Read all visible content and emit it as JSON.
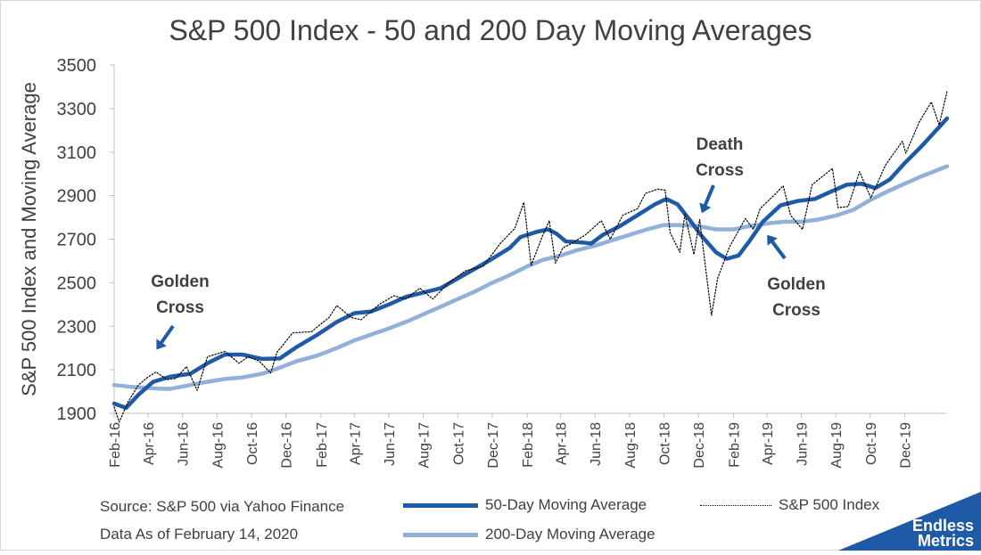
{
  "chart_data": {
    "type": "line",
    "title": "S&P 500 Index - 50 and 200 Day Moving Averages",
    "ylabel": "S&P 500 Index and Moving Average",
    "xlabel": "",
    "ylim": [
      1900,
      3500
    ],
    "yticks": [
      1900,
      2100,
      2300,
      2500,
      2700,
      2900,
      3100,
      3300,
      3500
    ],
    "xlim": [
      "2016-02-01",
      "2020-02-14"
    ],
    "x_tick_labels": [
      "Feb-16",
      "Apr-16",
      "Jun-16",
      "Aug-16",
      "Oct-16",
      "Dec-16",
      "Feb-17",
      "Apr-17",
      "Jun-17",
      "Aug-17",
      "Oct-17",
      "Dec-17",
      "Feb-18",
      "Apr-18",
      "Jun-18",
      "Aug-18",
      "Oct-18",
      "Dec-18",
      "Feb-19",
      "Apr-19",
      "Jun-19",
      "Aug-19",
      "Oct-19",
      "Dec-19"
    ],
    "x_tick_dates": [
      "2016-02-01",
      "2016-04-01",
      "2016-06-01",
      "2016-08-01",
      "2016-10-01",
      "2016-12-01",
      "2017-02-01",
      "2017-04-01",
      "2017-06-01",
      "2017-08-01",
      "2017-10-01",
      "2017-12-01",
      "2018-02-01",
      "2018-04-01",
      "2018-06-01",
      "2018-08-01",
      "2018-10-01",
      "2018-12-01",
      "2019-02-01",
      "2019-04-01",
      "2019-06-01",
      "2019-08-01",
      "2019-10-01",
      "2019-12-01"
    ],
    "grid": false,
    "legend_position": "bottom",
    "series": [
      {
        "name": "50-Day Moving Average",
        "color": "#1f5aa6",
        "style": "solid-thick",
        "points": [
          [
            "2016-02-01",
            1945
          ],
          [
            "2016-02-22",
            1925
          ],
          [
            "2016-03-15",
            1985
          ],
          [
            "2016-04-10",
            2045
          ],
          [
            "2016-05-10",
            2068
          ],
          [
            "2016-06-15",
            2082
          ],
          [
            "2016-07-15",
            2130
          ],
          [
            "2016-08-15",
            2170
          ],
          [
            "2016-09-15",
            2170
          ],
          [
            "2016-10-20",
            2150
          ],
          [
            "2016-11-20",
            2152
          ],
          [
            "2016-12-20",
            2205
          ],
          [
            "2017-01-25",
            2260
          ],
          [
            "2017-03-01",
            2320
          ],
          [
            "2017-04-01",
            2360
          ],
          [
            "2017-05-01",
            2368
          ],
          [
            "2017-06-01",
            2400
          ],
          [
            "2017-07-01",
            2435
          ],
          [
            "2017-08-01",
            2455
          ],
          [
            "2017-09-01",
            2475
          ],
          [
            "2017-10-01",
            2520
          ],
          [
            "2017-11-01",
            2565
          ],
          [
            "2017-12-01",
            2610
          ],
          [
            "2018-01-01",
            2660
          ],
          [
            "2018-01-20",
            2710
          ],
          [
            "2018-02-20",
            2735
          ],
          [
            "2018-03-10",
            2745
          ],
          [
            "2018-03-25",
            2725
          ],
          [
            "2018-04-10",
            2690
          ],
          [
            "2018-05-10",
            2685
          ],
          [
            "2018-05-25",
            2680
          ],
          [
            "2018-06-15",
            2720
          ],
          [
            "2018-07-15",
            2760
          ],
          [
            "2018-08-15",
            2810
          ],
          [
            "2018-09-15",
            2860
          ],
          [
            "2018-10-05",
            2885
          ],
          [
            "2018-10-25",
            2860
          ],
          [
            "2018-11-15",
            2790
          ],
          [
            "2018-12-05",
            2720
          ],
          [
            "2019-01-01",
            2640
          ],
          [
            "2019-01-20",
            2610
          ],
          [
            "2019-02-10",
            2625
          ],
          [
            "2019-03-01",
            2690
          ],
          [
            "2019-03-25",
            2780
          ],
          [
            "2019-04-25",
            2855
          ],
          [
            "2019-05-25",
            2875
          ],
          [
            "2019-06-25",
            2885
          ],
          [
            "2019-07-25",
            2920
          ],
          [
            "2019-08-20",
            2950
          ],
          [
            "2019-09-15",
            2955
          ],
          [
            "2019-10-10",
            2935
          ],
          [
            "2019-11-05",
            2975
          ],
          [
            "2019-12-01",
            3050
          ],
          [
            "2020-01-01",
            3130
          ],
          [
            "2020-02-14",
            3255
          ]
        ]
      },
      {
        "name": "200-Day Moving Average",
        "color": "#92b1da",
        "style": "solid-thick",
        "points": [
          [
            "2016-02-01",
            2030
          ],
          [
            "2016-03-01",
            2022
          ],
          [
            "2016-04-10",
            2015
          ],
          [
            "2016-05-10",
            2012
          ],
          [
            "2016-06-15",
            2030
          ],
          [
            "2016-07-15",
            2045
          ],
          [
            "2016-08-15",
            2058
          ],
          [
            "2016-09-15",
            2065
          ],
          [
            "2016-10-20",
            2082
          ],
          [
            "2016-11-20",
            2110
          ],
          [
            "2016-12-20",
            2140
          ],
          [
            "2017-01-25",
            2165
          ],
          [
            "2017-03-01",
            2200
          ],
          [
            "2017-04-01",
            2235
          ],
          [
            "2017-05-01",
            2262
          ],
          [
            "2017-06-01",
            2290
          ],
          [
            "2017-07-01",
            2320
          ],
          [
            "2017-08-01",
            2355
          ],
          [
            "2017-09-01",
            2390
          ],
          [
            "2017-10-01",
            2425
          ],
          [
            "2017-11-01",
            2460
          ],
          [
            "2017-12-01",
            2500
          ],
          [
            "2018-01-01",
            2535
          ],
          [
            "2018-02-01",
            2575
          ],
          [
            "2018-03-01",
            2605
          ],
          [
            "2018-04-01",
            2625
          ],
          [
            "2018-05-01",
            2650
          ],
          [
            "2018-06-01",
            2670
          ],
          [
            "2018-07-01",
            2695
          ],
          [
            "2018-08-01",
            2720
          ],
          [
            "2018-09-01",
            2745
          ],
          [
            "2018-10-01",
            2765
          ],
          [
            "2018-11-01",
            2765
          ],
          [
            "2018-12-01",
            2760
          ],
          [
            "2019-01-01",
            2745
          ],
          [
            "2019-02-01",
            2745
          ],
          [
            "2019-03-01",
            2760
          ],
          [
            "2019-04-01",
            2772
          ],
          [
            "2019-05-01",
            2780
          ],
          [
            "2019-06-01",
            2780
          ],
          [
            "2019-07-01",
            2790
          ],
          [
            "2019-08-01",
            2808
          ],
          [
            "2019-09-01",
            2835
          ],
          [
            "2019-10-01",
            2880
          ],
          [
            "2019-11-01",
            2920
          ],
          [
            "2019-12-01",
            2955
          ],
          [
            "2020-01-01",
            2990
          ],
          [
            "2020-02-14",
            3035
          ]
        ]
      },
      {
        "name": "S&P 500 Index",
        "color": "#000000",
        "style": "dotted",
        "points": [
          [
            "2016-02-01",
            1930
          ],
          [
            "2016-02-10",
            1860
          ],
          [
            "2016-02-25",
            1950
          ],
          [
            "2016-03-15",
            2030
          ],
          [
            "2016-03-31",
            2065
          ],
          [
            "2016-04-15",
            2090
          ],
          [
            "2016-05-05",
            2055
          ],
          [
            "2016-05-20",
            2060
          ],
          [
            "2016-06-08",
            2115
          ],
          [
            "2016-06-27",
            2005
          ],
          [
            "2016-07-15",
            2160
          ],
          [
            "2016-08-15",
            2185
          ],
          [
            "2016-09-09",
            2130
          ],
          [
            "2016-09-25",
            2160
          ],
          [
            "2016-10-15",
            2140
          ],
          [
            "2016-11-04",
            2085
          ],
          [
            "2016-11-15",
            2180
          ],
          [
            "2016-12-13",
            2270
          ],
          [
            "2017-01-15",
            2275
          ],
          [
            "2017-02-15",
            2340
          ],
          [
            "2017-03-01",
            2395
          ],
          [
            "2017-03-27",
            2340
          ],
          [
            "2017-04-13",
            2330
          ],
          [
            "2017-05-15",
            2400
          ],
          [
            "2017-06-10",
            2440
          ],
          [
            "2017-07-01",
            2425
          ],
          [
            "2017-07-26",
            2475
          ],
          [
            "2017-08-18",
            2425
          ],
          [
            "2017-09-15",
            2500
          ],
          [
            "2017-10-15",
            2555
          ],
          [
            "2017-11-15",
            2575
          ],
          [
            "2017-12-15",
            2680
          ],
          [
            "2018-01-10",
            2750
          ],
          [
            "2018-01-26",
            2870
          ],
          [
            "2018-02-08",
            2580
          ],
          [
            "2018-02-28",
            2715
          ],
          [
            "2018-03-12",
            2785
          ],
          [
            "2018-03-23",
            2590
          ],
          [
            "2018-04-05",
            2660
          ],
          [
            "2018-04-20",
            2680
          ],
          [
            "2018-05-15",
            2720
          ],
          [
            "2018-06-12",
            2785
          ],
          [
            "2018-06-28",
            2700
          ],
          [
            "2018-07-20",
            2810
          ],
          [
            "2018-08-15",
            2840
          ],
          [
            "2018-08-29",
            2910
          ],
          [
            "2018-09-20",
            2930
          ],
          [
            "2018-10-03",
            2925
          ],
          [
            "2018-10-12",
            2730
          ],
          [
            "2018-10-29",
            2640
          ],
          [
            "2018-11-07",
            2815
          ],
          [
            "2018-11-23",
            2630
          ],
          [
            "2018-12-03",
            2790
          ],
          [
            "2018-12-24",
            2350
          ],
          [
            "2019-01-04",
            2520
          ],
          [
            "2019-01-25",
            2665
          ],
          [
            "2019-02-22",
            2795
          ],
          [
            "2019-03-08",
            2745
          ],
          [
            "2019-03-20",
            2840
          ],
          [
            "2019-04-15",
            2905
          ],
          [
            "2019-04-30",
            2945
          ],
          [
            "2019-05-13",
            2810
          ],
          [
            "2019-06-03",
            2745
          ],
          [
            "2019-06-20",
            2950
          ],
          [
            "2019-07-26",
            3025
          ],
          [
            "2019-08-05",
            2845
          ],
          [
            "2019-08-23",
            2850
          ],
          [
            "2019-09-12",
            3010
          ],
          [
            "2019-10-02",
            2890
          ],
          [
            "2019-10-28",
            3040
          ],
          [
            "2019-11-27",
            3150
          ],
          [
            "2019-12-03",
            3095
          ],
          [
            "2019-12-27",
            3240
          ],
          [
            "2020-01-17",
            3330
          ],
          [
            "2020-01-31",
            3225
          ],
          [
            "2020-02-14",
            3380
          ]
        ]
      }
    ],
    "annotations": [
      {
        "label_line1": "Golden",
        "label_line2": "Cross",
        "date": "2016-04-10",
        "value": 2040
      },
      {
        "label_line1": "Death",
        "label_line2": "Cross",
        "date": "2018-11-20",
        "value": 2770
      },
      {
        "label_line1": "Golden",
        "label_line2": "Cross",
        "date": "2019-03-20",
        "value": 2765
      }
    ]
  },
  "footer": {
    "source": "Source: S&P 500 via Yahoo Finance",
    "as_of": "Data As of February 14, 2020"
  },
  "brand": {
    "line1": "Endless",
    "line2": "Metrics",
    "color": "#1f5aa6"
  }
}
